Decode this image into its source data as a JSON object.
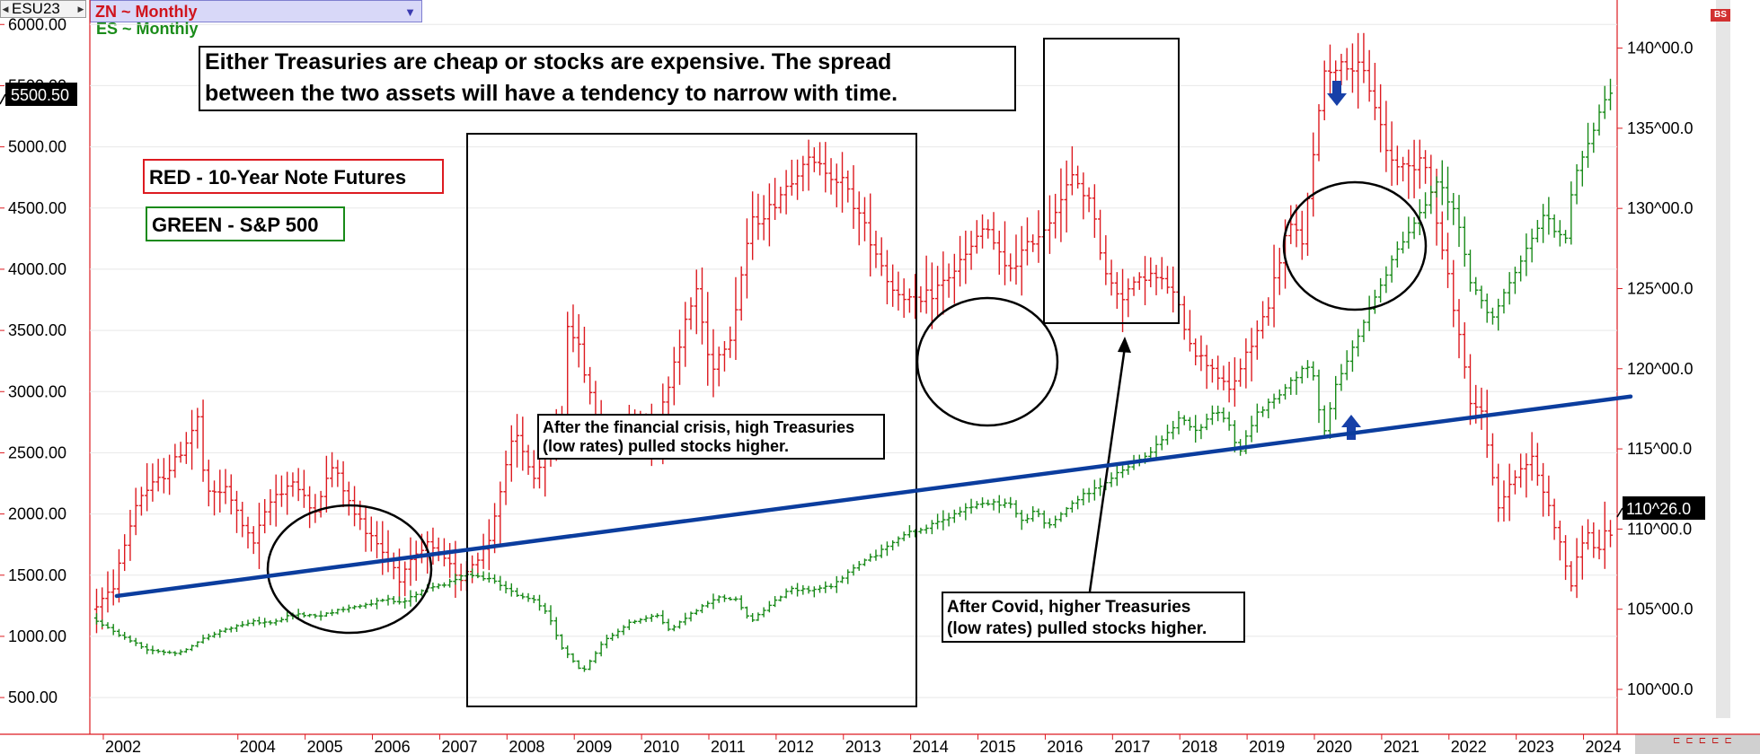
{
  "header": {
    "symbol": "ESU23",
    "primary_study": "ZN ~ Monthly",
    "secondary_study": "ES ~ Monthly"
  },
  "price_badges": {
    "left_last": "5500.50",
    "right_last": "110^26.0"
  },
  "colors": {
    "zn": "#dd1a20",
    "es": "#188a18",
    "trend": "#0b3d9e",
    "annotation": "#000000"
  },
  "chart_data": {
    "type": "bar",
    "subtype": "ohlc-monthly-overlay",
    "x_axis": {
      "ticks": [
        "2002",
        "2004",
        "2005",
        "2006",
        "2007",
        "2008",
        "2009",
        "2010",
        "2011",
        "2012",
        "2013",
        "2014",
        "2015",
        "2016",
        "2017",
        "2018",
        "2019",
        "2020",
        "2021",
        "2022",
        "2023",
        "2024"
      ],
      "range": [
        2001.8,
        2024.5
      ]
    },
    "y_left": {
      "series": "ES",
      "ticks": [
        "6000.00",
        "5500.00",
        "5000.00",
        "4500.00",
        "4000.00",
        "3500.00",
        "3000.00",
        "2500.00",
        "2000.00",
        "1500.00",
        "1000.00",
        "500.00"
      ],
      "range": [
        200,
        6200
      ]
    },
    "y_right": {
      "series": "ZN",
      "ticks": [
        "140^00.0",
        "135^00.0",
        "130^00.0",
        "125^00.0",
        "120^00.0",
        "115^00.0",
        "110^00.0",
        "105^00.0",
        "100^00.0"
      ],
      "range": [
        97.2,
        143
      ]
    },
    "series": [
      {
        "name": "RED - 10-Year Note Futures",
        "axis": "right",
        "color": "#dd1a20",
        "anchors": [
          [
            2001.9,
            105
          ],
          [
            2002.2,
            106
          ],
          [
            2002.6,
            112
          ],
          [
            2002.9,
            113
          ],
          [
            2003.2,
            114.5
          ],
          [
            2003.5,
            117
          ],
          [
            2003.6,
            112
          ],
          [
            2003.9,
            112.5
          ],
          [
            2004.3,
            109
          ],
          [
            2004.6,
            112
          ],
          [
            2004.9,
            113
          ],
          [
            2005.2,
            111
          ],
          [
            2005.5,
            114
          ],
          [
            2005.8,
            111
          ],
          [
            2006.1,
            109.5
          ],
          [
            2006.5,
            107
          ],
          [
            2006.9,
            109
          ],
          [
            2007.4,
            107
          ],
          [
            2007.8,
            109
          ],
          [
            2007.9,
            111
          ],
          [
            2008.2,
            116
          ],
          [
            2008.5,
            113
          ],
          [
            2008.9,
            117
          ],
          [
            2008.95,
            123
          ],
          [
            2009.1,
            122
          ],
          [
            2009.4,
            117
          ],
          [
            2009.6,
            116
          ],
          [
            2010.0,
            117
          ],
          [
            2010.3,
            116
          ],
          [
            2010.6,
            121
          ],
          [
            2010.9,
            125
          ],
          [
            2011.1,
            120
          ],
          [
            2011.4,
            122
          ],
          [
            2011.7,
            129
          ],
          [
            2012.0,
            130
          ],
          [
            2012.5,
            133
          ],
          [
            2012.8,
            132.5
          ],
          [
            2013.1,
            131.5
          ],
          [
            2013.5,
            128
          ],
          [
            2013.8,
            125
          ],
          [
            2014.2,
            124
          ],
          [
            2014.6,
            125.5
          ],
          [
            2014.9,
            127
          ],
          [
            2015.2,
            129
          ],
          [
            2015.5,
            126
          ],
          [
            2015.8,
            127.5
          ],
          [
            2016.1,
            129
          ],
          [
            2016.5,
            132
          ],
          [
            2016.8,
            130
          ],
          [
            2016.95,
            126
          ],
          [
            2017.2,
            124.5
          ],
          [
            2017.6,
            126
          ],
          [
            2017.95,
            125
          ],
          [
            2018.3,
            121
          ],
          [
            2018.6,
            120
          ],
          [
            2018.8,
            118.5
          ],
          [
            2019.1,
            121
          ],
          [
            2019.4,
            124
          ],
          [
            2019.7,
            129
          ],
          [
            2019.9,
            128
          ],
          [
            2020.1,
            134
          ],
          [
            2020.2,
            138.5
          ],
          [
            2020.5,
            139
          ],
          [
            2020.8,
            138.5
          ],
          [
            2020.95,
            137
          ],
          [
            2021.2,
            133
          ],
          [
            2021.5,
            132.5
          ],
          [
            2021.7,
            133.5
          ],
          [
            2021.95,
            128
          ],
          [
            2022.2,
            123
          ],
          [
            2022.4,
            118
          ],
          [
            2022.6,
            117
          ],
          [
            2022.8,
            111
          ],
          [
            2023.0,
            113
          ],
          [
            2023.3,
            114.5
          ],
          [
            2023.6,
            111
          ],
          [
            2023.9,
            106.5
          ],
          [
            2024.1,
            110
          ],
          [
            2024.3,
            108.5
          ],
          [
            2024.4,
            109.5
          ]
        ]
      },
      {
        "name": "GREEN - S&P 500",
        "axis": "left",
        "color": "#188a18",
        "anchors": [
          [
            2001.9,
            1150
          ],
          [
            2002.3,
            1020
          ],
          [
            2002.7,
            900
          ],
          [
            2002.9,
            880
          ],
          [
            2003.2,
            860
          ],
          [
            2003.6,
            990
          ],
          [
            2003.9,
            1060
          ],
          [
            2004.3,
            1120
          ],
          [
            2004.6,
            1110
          ],
          [
            2004.9,
            1180
          ],
          [
            2005.3,
            1170
          ],
          [
            2005.6,
            1220
          ],
          [
            2005.9,
            1250
          ],
          [
            2006.3,
            1300
          ],
          [
            2006.5,
            1270
          ],
          [
            2006.9,
            1400
          ],
          [
            2007.2,
            1430
          ],
          [
            2007.5,
            1520
          ],
          [
            2007.7,
            1480
          ],
          [
            2007.9,
            1460
          ],
          [
            2008.2,
            1340
          ],
          [
            2008.5,
            1290
          ],
          [
            2008.7,
            1180
          ],
          [
            2008.9,
            900
          ],
          [
            2009.1,
            780
          ],
          [
            2009.2,
            700
          ],
          [
            2009.5,
            950
          ],
          [
            2009.9,
            1110
          ],
          [
            2010.3,
            1180
          ],
          [
            2010.5,
            1050
          ],
          [
            2010.8,
            1180
          ],
          [
            2011.2,
            1320
          ],
          [
            2011.5,
            1300
          ],
          [
            2011.7,
            1120
          ],
          [
            2011.95,
            1240
          ],
          [
            2012.3,
            1390
          ],
          [
            2012.6,
            1380
          ],
          [
            2012.95,
            1420
          ],
          [
            2013.3,
            1590
          ],
          [
            2013.6,
            1680
          ],
          [
            2013.95,
            1830
          ],
          [
            2014.3,
            1880
          ],
          [
            2014.6,
            1970
          ],
          [
            2014.95,
            2060
          ],
          [
            2015.3,
            2090
          ],
          [
            2015.6,
            2080
          ],
          [
            2015.7,
            1920
          ],
          [
            2015.95,
            2040
          ],
          [
            2016.1,
            1880
          ],
          [
            2016.5,
            2100
          ],
          [
            2016.95,
            2250
          ],
          [
            2017.3,
            2380
          ],
          [
            2017.6,
            2480
          ],
          [
            2017.95,
            2680
          ],
          [
            2018.1,
            2800
          ],
          [
            2018.3,
            2660
          ],
          [
            2018.6,
            2850
          ],
          [
            2018.8,
            2760
          ],
          [
            2018.95,
            2480
          ],
          [
            2019.2,
            2800
          ],
          [
            2019.6,
            2990
          ],
          [
            2019.95,
            3230
          ],
          [
            2020.1,
            3100
          ],
          [
            2020.2,
            2580
          ],
          [
            2020.4,
            3050
          ],
          [
            2020.7,
            3400
          ],
          [
            2020.95,
            3750
          ],
          [
            2021.3,
            4150
          ],
          [
            2021.6,
            4400
          ],
          [
            2021.8,
            4600
          ],
          [
            2021.95,
            4750
          ],
          [
            2022.2,
            4400
          ],
          [
            2022.4,
            3900
          ],
          [
            2022.7,
            3600
          ],
          [
            2022.95,
            3850
          ],
          [
            2023.2,
            4100
          ],
          [
            2023.5,
            4450
          ],
          [
            2023.8,
            4200
          ],
          [
            2023.95,
            4770
          ],
          [
            2024.2,
            5100
          ],
          [
            2024.4,
            5400
          ]
        ]
      }
    ],
    "trend_line": {
      "from": [
        2002.2,
        1330
      ],
      "to": [
        2024.7,
        2960
      ],
      "axis": "left"
    },
    "legend": [
      "RED - 10-Year Note Futures",
      "GREEN - S&P 500"
    ],
    "legend_position": "top-left",
    "grid": true,
    "annotations": {
      "headline": [
        "Either Treasuries are cheap or stocks are expensive. The spread",
        "between the two assets will have a tendency to narrow with time."
      ],
      "financial_crisis": [
        "After the financial crisis, high Treasuries",
        "(low rates) pulled stocks higher."
      ],
      "covid": [
        "After Covid, higher Treasuries",
        "(low rates) pulled stocks higher."
      ]
    }
  }
}
